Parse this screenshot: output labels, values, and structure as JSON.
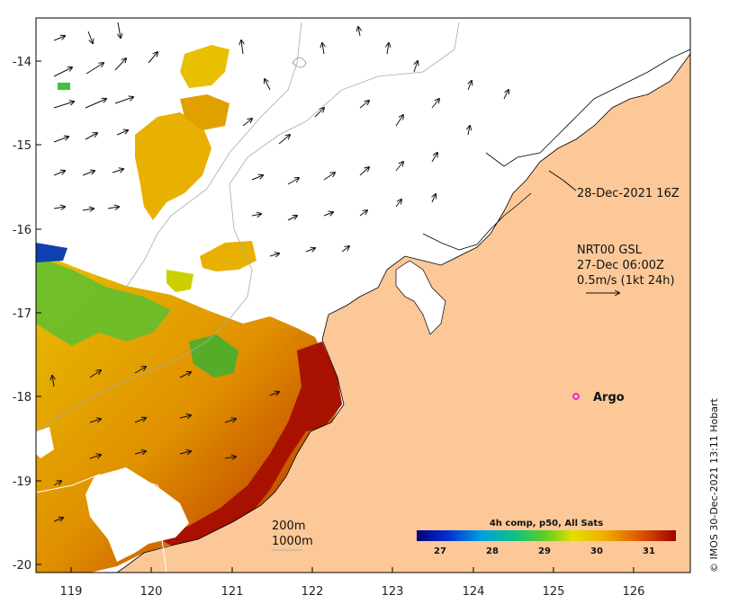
{
  "map": {
    "lon_ticks": [
      "119",
      "120",
      "121",
      "122",
      "123",
      "124",
      "125",
      "126"
    ],
    "lat_ticks": [
      "-14",
      "-15",
      "-16",
      "-17",
      "-18",
      "-19",
      "-20"
    ],
    "track_label": "28-Dec-2021 16Z",
    "velocity_legend": {
      "line1": "NRT00 GSL",
      "line2": "27-Dec 06:00Z",
      "line3": "0.5m/s (1kt 24h)"
    },
    "argo_label": "Argo",
    "contour_labels": [
      "200m",
      "1000m"
    ],
    "colorbar": {
      "title": "4h comp, p50, All Sats",
      "ticks": [
        "27",
        "28",
        "29",
        "30",
        "31"
      ]
    },
    "credit": "© IMOS 30-Dec-2021 13:11 Hobart",
    "colors": {
      "land": "#fcc898",
      "sst_cold": "#000080",
      "sst_mid": "#22aa22",
      "sst_warm": "#f0b000",
      "sst_hot": "#a00000",
      "argo": "#e000e0"
    }
  }
}
